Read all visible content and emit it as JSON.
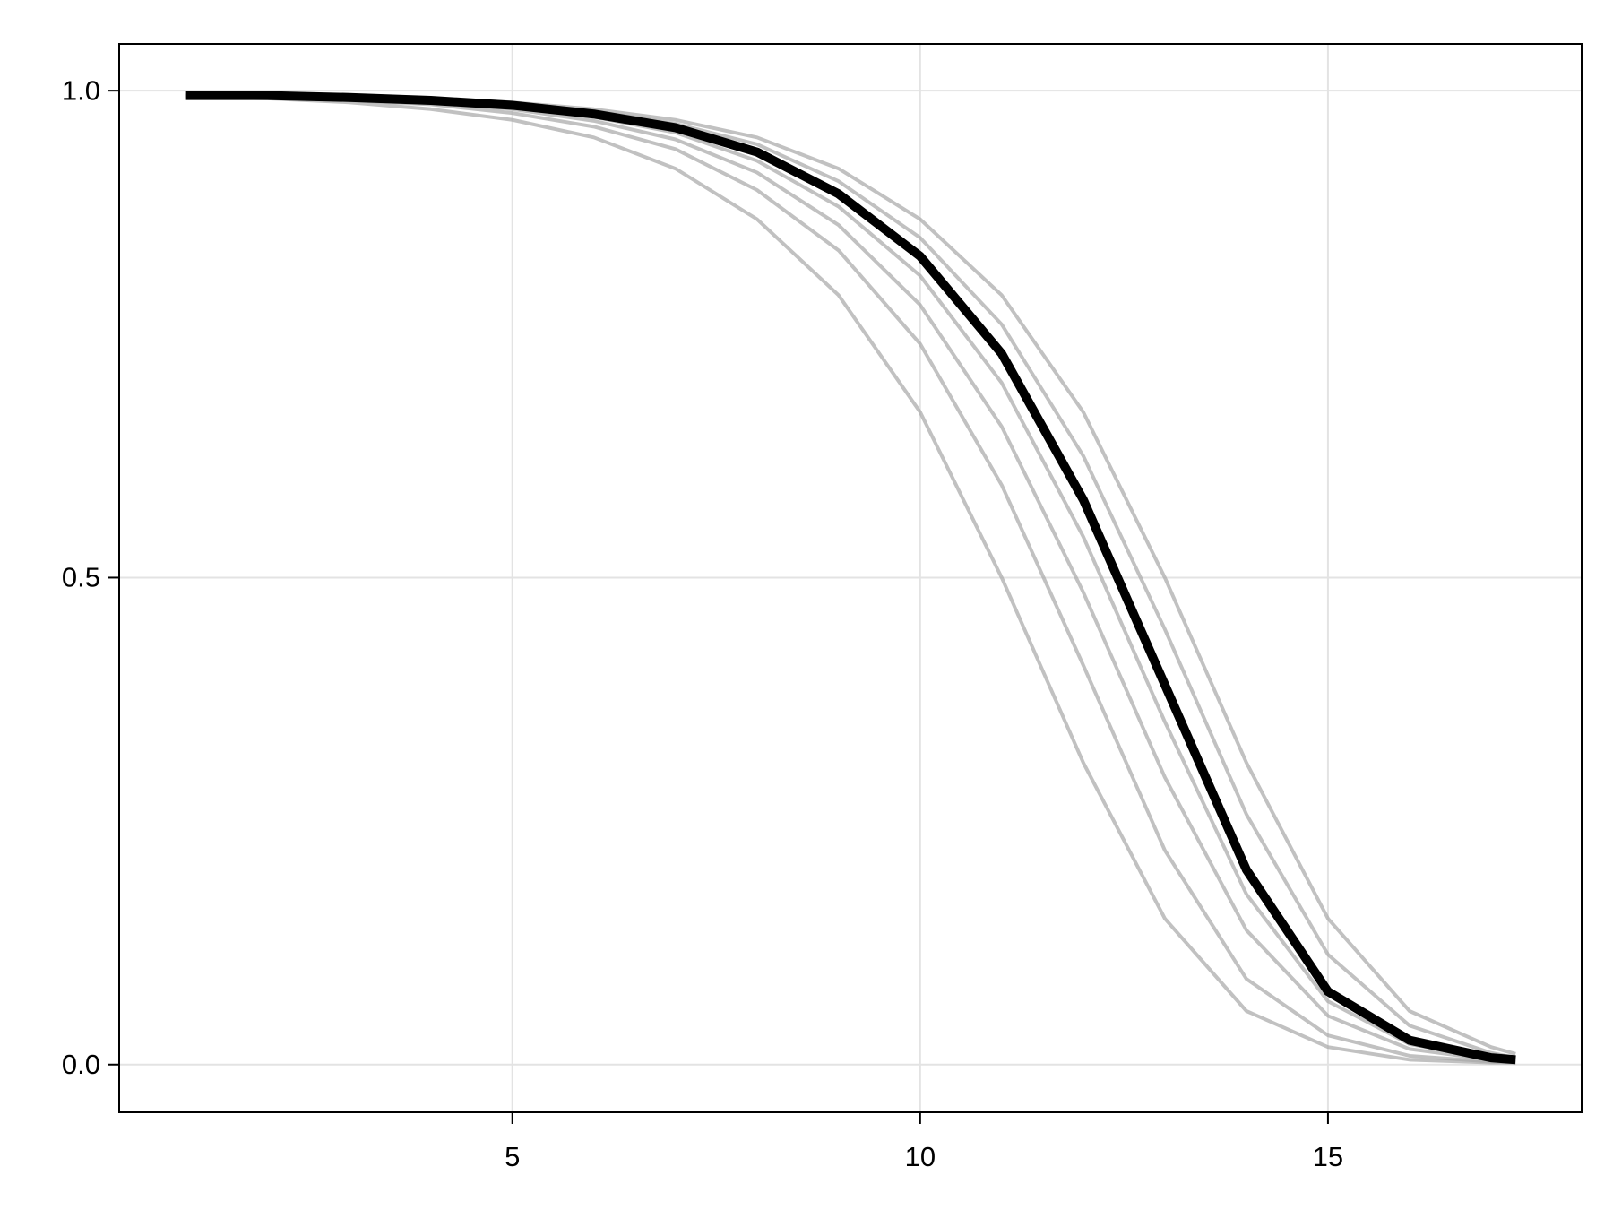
{
  "chart_data": {
    "type": "line",
    "x": [
      1,
      2,
      3,
      4,
      5,
      6,
      7,
      8,
      9,
      10,
      11,
      12,
      13,
      14,
      15,
      16,
      17,
      17.3
    ],
    "series": [
      {
        "color": "#a6a6a6",
        "values": [
          0.994,
          0.992,
          0.988,
          0.981,
          0.97,
          0.952,
          0.92,
          0.868,
          0.79,
          0.67,
          0.5,
          0.31,
          0.15,
          0.055,
          0.018,
          0.005,
          0.002,
          0.002
        ]
      },
      {
        "color": "#a6a6a6",
        "values": [
          0.995,
          0.993,
          0.99,
          0.986,
          0.977,
          0.963,
          0.94,
          0.898,
          0.836,
          0.74,
          0.595,
          0.41,
          0.22,
          0.088,
          0.03,
          0.009,
          0.003,
          0.002
        ]
      },
      {
        "color": "#a6a6a6",
        "values": [
          0.995,
          0.994,
          0.992,
          0.988,
          0.981,
          0.969,
          0.95,
          0.916,
          0.862,
          0.78,
          0.655,
          0.485,
          0.295,
          0.138,
          0.05,
          0.016,
          0.005,
          0.003
        ]
      },
      {
        "color": "#a6a6a6",
        "values": [
          0.995,
          0.995,
          0.993,
          0.989,
          0.983,
          0.973,
          0.957,
          0.928,
          0.881,
          0.81,
          0.7,
          0.542,
          0.352,
          0.175,
          0.065,
          0.021,
          0.006,
          0.004
        ]
      },
      {
        "color": "#a6a6a6",
        "values": [
          0.995,
          0.995,
          0.994,
          0.991,
          0.987,
          0.979,
          0.966,
          0.945,
          0.907,
          0.849,
          0.76,
          0.625,
          0.447,
          0.257,
          0.113,
          0.04,
          0.012,
          0.007
        ]
      },
      {
        "color": "#a6a6a6",
        "values": [
          0.995,
          0.995,
          0.994,
          0.992,
          0.988,
          0.981,
          0.97,
          0.952,
          0.92,
          0.868,
          0.79,
          0.67,
          0.5,
          0.31,
          0.15,
          0.055,
          0.018,
          0.011
        ]
      },
      {
        "color": "#000000",
        "values": [
          0.995,
          0.995,
          0.993,
          0.99,
          0.985,
          0.976,
          0.962,
          0.937,
          0.894,
          0.83,
          0.73,
          0.58,
          0.39,
          0.2,
          0.075,
          0.025,
          0.007,
          0.005
        ]
      }
    ],
    "xlim": [
      0.18,
      18.11
    ],
    "ylim": [
      -0.049,
      1.048
    ],
    "xticks": [
      5,
      10,
      15
    ],
    "yticks": [
      {
        "value": 0,
        "label": "0.0"
      },
      {
        "value": 0.5,
        "label": "0.5"
      },
      {
        "value": 1,
        "label": "1.0"
      }
    ],
    "grid": true
  }
}
